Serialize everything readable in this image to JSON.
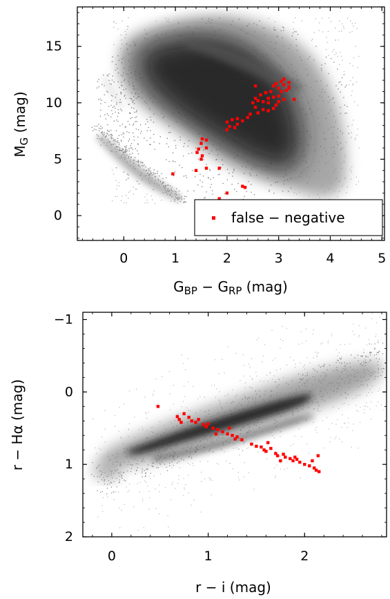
{
  "chart_data": [
    {
      "type": "scatter",
      "title": "",
      "xlabel": "G_BP − G_RP (mag)",
      "xlabel_parts": {
        "a": "G",
        "a_sub": "BP",
        "minus": " − ",
        "b": "G",
        "b_sub": "RP",
        "unit": " (mag)"
      },
      "ylabel": "M_G (mag)",
      "ylabel_parts": {
        "main": "M",
        "sub": "G",
        "unit": " (mag)"
      },
      "xlim": [
        -0.9,
        5.05
      ],
      "ylim": [
        18.5,
        -2.2
      ],
      "y_inverted": true,
      "xticks": [
        0,
        1,
        2,
        3,
        4,
        5
      ],
      "yticks": [
        0,
        5,
        10,
        15
      ],
      "grid": false,
      "legend": {
        "placement": "lower-right",
        "entries": [
          "false − negative"
        ]
      },
      "background_density": "grey shaded density of full sample: main sequence, giant branch and white-dwarf sequence",
      "series": [
        {
          "name": "false − negative",
          "color": "#ff0000",
          "points": [
            [
              1.85,
              1.5
            ],
            [
              2.0,
              2.0
            ],
            [
              2.3,
              2.6
            ],
            [
              2.35,
              2.5
            ],
            [
              0.95,
              3.7
            ],
            [
              1.4,
              4.0
            ],
            [
              1.6,
              4.2
            ],
            [
              1.85,
              4.2
            ],
            [
              1.5,
              5.0
            ],
            [
              1.52,
              5.3
            ],
            [
              1.42,
              5.6
            ],
            [
              1.45,
              5.9
            ],
            [
              1.6,
              6.0
            ],
            [
              1.5,
              6.4
            ],
            [
              1.6,
              6.7
            ],
            [
              1.52,
              6.8
            ],
            [
              2.0,
              7.6
            ],
            [
              2.05,
              7.9
            ],
            [
              2.15,
              7.8
            ],
            [
              2.2,
              8.1
            ],
            [
              2.0,
              8.3
            ],
            [
              2.1,
              8.5
            ],
            [
              2.3,
              8.4
            ],
            [
              2.4,
              8.7
            ],
            [
              2.45,
              9.0
            ],
            [
              2.6,
              9.1
            ],
            [
              2.2,
              8.6
            ],
            [
              2.55,
              9.6
            ],
            [
              2.7,
              9.4
            ],
            [
              2.8,
              9.3
            ],
            [
              2.9,
              9.5
            ],
            [
              2.95,
              9.8
            ],
            [
              2.5,
              10.0
            ],
            [
              2.6,
              10.2
            ],
            [
              2.7,
              10.1
            ],
            [
              2.8,
              10.4
            ],
            [
              2.9,
              10.5
            ],
            [
              3.0,
              10.6
            ],
            [
              3.1,
              10.3
            ],
            [
              3.3,
              10.3
            ],
            [
              2.55,
              10.4
            ],
            [
              2.65,
              10.7
            ],
            [
              2.75,
              10.9
            ],
            [
              2.85,
              11.0
            ],
            [
              3.05,
              11.0
            ],
            [
              3.15,
              11.1
            ],
            [
              3.0,
              11.3
            ],
            [
              3.2,
              11.4
            ],
            [
              2.9,
              11.5
            ],
            [
              3.1,
              11.6
            ],
            [
              3.2,
              11.8
            ],
            [
              3.05,
              11.9
            ],
            [
              3.1,
              12.1
            ],
            [
              2.55,
              11.5
            ],
            [
              2.8,
              10.0
            ],
            [
              3.0,
              10.1
            ],
            [
              2.95,
              11.7
            ],
            [
              3.2,
              11.3
            ]
          ]
        }
      ]
    },
    {
      "type": "scatter",
      "title": "",
      "xlabel": "r − i (mag)",
      "xlabel_parts": {
        "main": "r − i",
        "unit": " (mag)"
      },
      "ylabel": "r − Hα (mag)",
      "ylabel_parts": {
        "main": "r − Hα",
        "unit": " (mag)"
      },
      "xlim": [
        -0.3,
        2.85
      ],
      "ylim": [
        -1.1,
        2.0
      ],
      "xticks": [
        0,
        1,
        2
      ],
      "yticks": [
        -1,
        0,
        1,
        2
      ],
      "ytick_labels": [
        "−1",
        "0",
        "1",
        "2"
      ],
      "grid": false,
      "legend": null,
      "background_density": "grey shaded density of full sample along main stellar locus",
      "series": [
        {
          "name": "false − negative",
          "color": "#ff0000",
          "points": [
            [
              0.48,
              0.2
            ],
            [
              0.68,
              0.34
            ],
            [
              0.7,
              0.38
            ],
            [
              0.72,
              0.42
            ],
            [
              0.75,
              0.3
            ],
            [
              0.8,
              0.35
            ],
            [
              0.83,
              0.4
            ],
            [
              0.87,
              0.42
            ],
            [
              0.9,
              0.38
            ],
            [
              0.95,
              0.45
            ],
            [
              1.0,
              0.44
            ],
            [
              1.05,
              0.5
            ],
            [
              1.1,
              0.52
            ],
            [
              1.08,
              0.58
            ],
            [
              1.15,
              0.55
            ],
            [
              1.2,
              0.58
            ],
            [
              1.25,
              0.6
            ],
            [
              1.28,
              0.65
            ],
            [
              1.3,
              0.62
            ],
            [
              1.35,
              0.66
            ],
            [
              1.22,
              0.5
            ],
            [
              1.45,
              0.72
            ],
            [
              1.5,
              0.75
            ],
            [
              1.55,
              0.76
            ],
            [
              1.58,
              0.8
            ],
            [
              1.6,
              0.82
            ],
            [
              1.65,
              0.78
            ],
            [
              1.7,
              0.85
            ],
            [
              1.72,
              0.88
            ],
            [
              1.75,
              0.95
            ],
            [
              1.78,
              0.86
            ],
            [
              1.8,
              0.9
            ],
            [
              1.85,
              0.92
            ],
            [
              1.88,
              0.95
            ],
            [
              1.9,
              0.9
            ],
            [
              1.92,
              0.93
            ],
            [
              1.95,
              0.97
            ],
            [
              2.0,
              1.0
            ],
            [
              2.05,
              1.02
            ],
            [
              2.1,
              1.05
            ],
            [
              2.12,
              1.08
            ],
            [
              2.15,
              1.1
            ],
            [
              2.08,
              0.95
            ],
            [
              2.14,
              0.88
            ],
            [
              1.62,
              0.7
            ],
            [
              0.98,
              0.48
            ]
          ]
        }
      ]
    }
  ]
}
